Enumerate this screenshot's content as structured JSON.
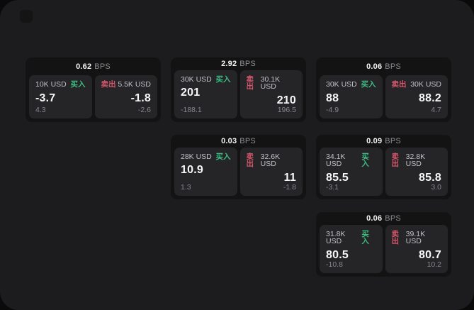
{
  "labels": {
    "bps_unit": "BPS",
    "buy": "买入",
    "sell": "卖出"
  },
  "colors": {
    "window_bg": "#1c1c1e",
    "card_bg": "#131314",
    "panel_bg": "#252528",
    "buy_green": "#3dbd83",
    "sell_red": "#d4566a"
  },
  "cards": [
    {
      "bps": "0.62",
      "buy": {
        "amount": "10K USD",
        "value": "-3.7",
        "sub": "4.3"
      },
      "sell": {
        "amount": "5.5K USD",
        "value": "-1.8",
        "sub": "-2.6"
      }
    },
    {
      "bps": "2.92",
      "buy": {
        "amount": "30K USD",
        "value": "201",
        "sub": "-188.1"
      },
      "sell": {
        "amount": "30.1K USD",
        "value": "210",
        "sub": "196.5"
      }
    },
    {
      "bps": "0.06",
      "buy": {
        "amount": "30K USD",
        "value": "88",
        "sub": "-4.9"
      },
      "sell": {
        "amount": "30K USD",
        "value": "88.2",
        "sub": "4.7"
      }
    },
    {
      "bps": "0.03",
      "buy": {
        "amount": "28K USD",
        "value": "10.9",
        "sub": "1.3"
      },
      "sell": {
        "amount": "32.6K USD",
        "value": "11",
        "sub": "-1.8"
      }
    },
    {
      "bps": "0.09",
      "buy": {
        "amount": "34.1K USD",
        "value": "85.5",
        "sub": "-3.1"
      },
      "sell": {
        "amount": "32.8K USD",
        "value": "85.8",
        "sub": "3.0"
      }
    },
    {
      "bps": "0.06",
      "buy": {
        "amount": "31.8K USD",
        "value": "80.5",
        "sub": "-10.8"
      },
      "sell": {
        "amount": "39.1K USD",
        "value": "80.7",
        "sub": "10.2"
      }
    }
  ]
}
